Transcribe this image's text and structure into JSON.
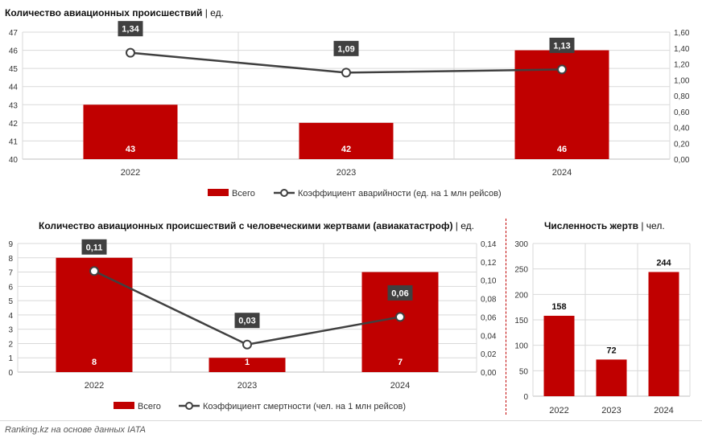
{
  "colors": {
    "bar": "#c00000",
    "line": "#404040",
    "label_bg": "#404040",
    "grid": "#d9d9d9"
  },
  "charts": [
    {
      "title": "Количество авиационных происшествий",
      "unit": "| ед.",
      "legend_bar": "Всего",
      "legend_line": "Коэффициент аварийности (ед. на 1 млн рейсов)"
    },
    {
      "title": "Количество авиационных происшествий с человеческими жертвами (авиакатастроф)",
      "unit": "| ед.",
      "legend_bar": "Всего",
      "legend_line": "Коэффициент смертности (чел. на 1 млн рейсов)"
    },
    {
      "title": "Численность жертв",
      "unit": "| чел."
    }
  ],
  "chart_data": [
    {
      "type": "bar+line",
      "title": "Количество авиационных происшествий | ед.",
      "categories": [
        "2022",
        "2023",
        "2024"
      ],
      "series": [
        {
          "name": "Всего",
          "type": "bar",
          "axis": "left",
          "values": [
            43,
            42,
            46
          ],
          "labels": [
            "43",
            "42",
            "46"
          ]
        },
        {
          "name": "Коэффициент аварийности (ед. на 1 млн рейсов)",
          "type": "line",
          "axis": "right",
          "values": [
            1.34,
            1.09,
            1.13
          ],
          "labels": [
            "1,34",
            "1,09",
            "1,13"
          ]
        }
      ],
      "ylim_left": [
        40,
        47
      ],
      "yticks_left": [
        "40",
        "41",
        "42",
        "43",
        "44",
        "45",
        "46",
        "47"
      ],
      "ylim_right": [
        0,
        1.6
      ],
      "yticks_right": [
        "0,00",
        "0,20",
        "0,40",
        "0,60",
        "0,80",
        "1,00",
        "1,20",
        "1,40",
        "1,60"
      ],
      "legend": "bottom",
      "grid": true
    },
    {
      "type": "bar+line",
      "title": "Количество авиационных происшествий с человеческими жертвами (авиакатастроф) | ед.",
      "categories": [
        "2022",
        "2023",
        "2024"
      ],
      "series": [
        {
          "name": "Всего",
          "type": "bar",
          "axis": "left",
          "values": [
            8,
            1,
            7
          ],
          "labels": [
            "8",
            "1",
            "7"
          ]
        },
        {
          "name": "Коэффициент смертности (чел. на 1 млн рейсов)",
          "type": "line",
          "axis": "right",
          "values": [
            0.11,
            0.03,
            0.06
          ],
          "labels": [
            "0,11",
            "0,03",
            "0,06"
          ]
        }
      ],
      "ylim_left": [
        0,
        9
      ],
      "yticks_left": [
        "0",
        "1",
        "2",
        "3",
        "4",
        "5",
        "6",
        "7",
        "8",
        "9"
      ],
      "ylim_right": [
        0,
        0.14
      ],
      "yticks_right": [
        "0,00",
        "0,02",
        "0,04",
        "0,06",
        "0,08",
        "0,10",
        "0,12",
        "0,14"
      ],
      "legend": "bottom",
      "grid": true
    },
    {
      "type": "bar",
      "title": "Численность жертв | чел.",
      "categories": [
        "2022",
        "2023",
        "2024"
      ],
      "values": [
        158,
        72,
        244
      ],
      "labels": [
        "158",
        "72",
        "244"
      ],
      "ylim": [
        0,
        300
      ],
      "yticks": [
        "0",
        "50",
        "100",
        "150",
        "200",
        "250",
        "300"
      ],
      "grid": true
    }
  ],
  "footer": "Ranking.kz на основе данных IATA"
}
